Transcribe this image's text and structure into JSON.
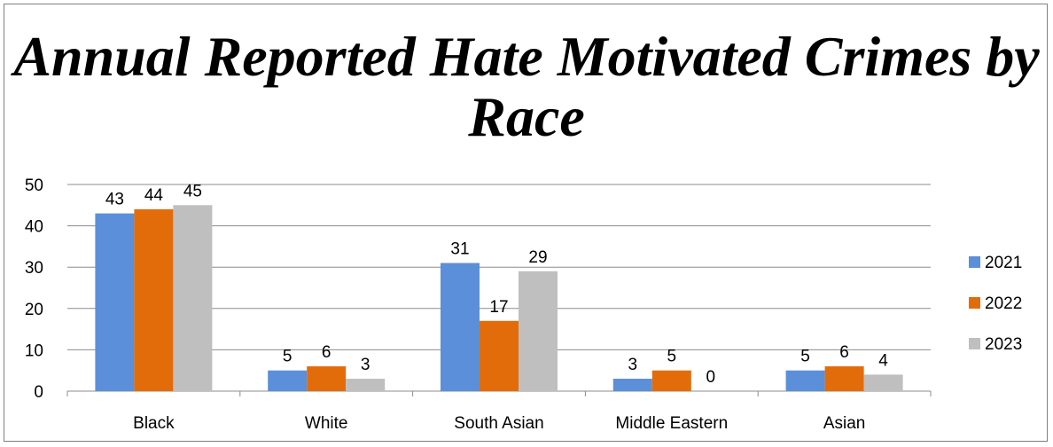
{
  "chart_data": {
    "type": "bar",
    "title": "Annual Reported Hate Motivated Crimes by Race",
    "categories": [
      "Black",
      "White",
      "South Asian",
      "Middle Eastern",
      "Asian"
    ],
    "series": [
      {
        "name": "2021",
        "color": "#5B8FD9",
        "values": [
          43,
          5,
          31,
          3,
          5
        ]
      },
      {
        "name": "2022",
        "color": "#E36C0A",
        "values": [
          44,
          6,
          17,
          5,
          6
        ]
      },
      {
        "name": "2023",
        "color": "#BFBFBF",
        "values": [
          45,
          3,
          29,
          0,
          4
        ]
      }
    ],
    "ylim": [
      0,
      50
    ],
    "yticks": [
      0,
      10,
      20,
      30,
      40,
      50
    ],
    "grid": true,
    "legend": "right",
    "xlabel": "",
    "ylabel": ""
  }
}
